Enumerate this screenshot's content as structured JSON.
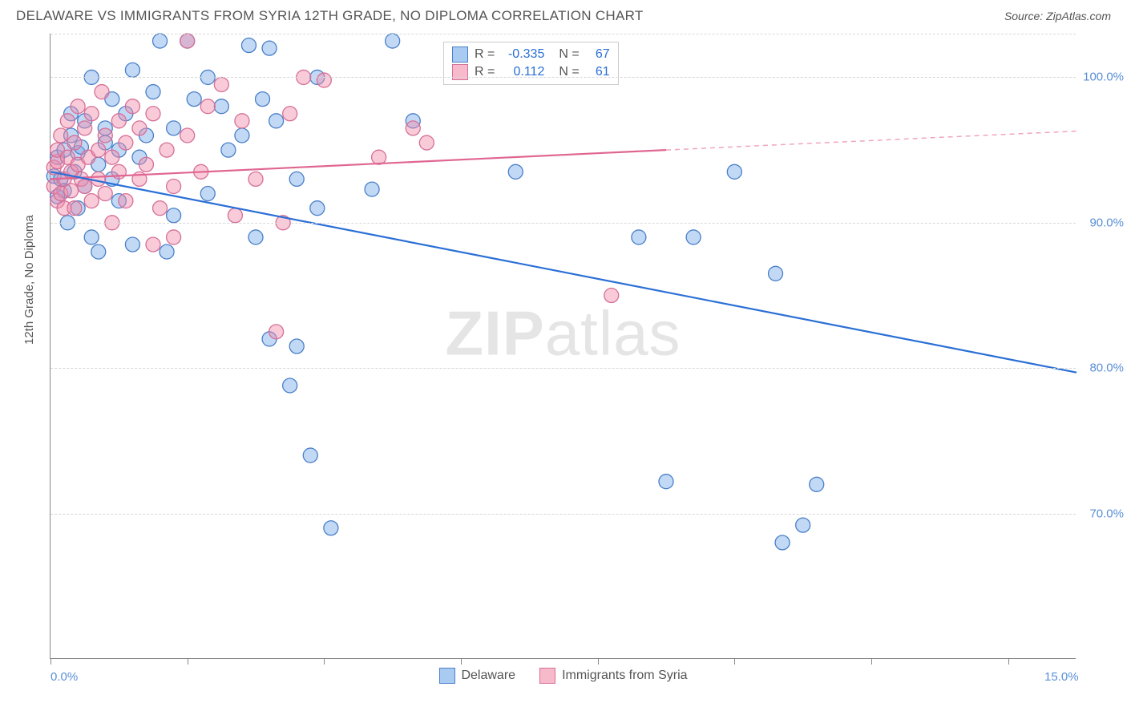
{
  "header": {
    "title": "DELAWARE VS IMMIGRANTS FROM SYRIA 12TH GRADE, NO DIPLOMA CORRELATION CHART",
    "source": "Source: ZipAtlas.com"
  },
  "chart": {
    "type": "scatter",
    "y_axis_title": "12th Grade, No Diploma",
    "watermark": "ZIPatlas",
    "background_color": "#ffffff",
    "grid_color": "#d8d8d8",
    "axis_color": "#888888",
    "xlim": [
      0,
      15
    ],
    "ylim": [
      60,
      103
    ],
    "x_ticks": [
      0,
      2,
      4,
      6,
      8,
      10,
      12,
      14
    ],
    "x_labels": [
      {
        "val": 0,
        "text": "0.0%"
      },
      {
        "val": 15,
        "text": "15.0%"
      }
    ],
    "y_gridlines": [
      70,
      80,
      90,
      100,
      103
    ],
    "y_labels": [
      {
        "val": 70,
        "text": "70.0%"
      },
      {
        "val": 80,
        "text": "80.0%"
      },
      {
        "val": 90,
        "text": "90.0%"
      },
      {
        "val": 100,
        "text": "100.0%"
      }
    ],
    "marker_radius": 9,
    "marker_stroke_width": 1.3,
    "series": [
      {
        "name": "Delaware",
        "fill": "rgba(120,170,235,0.45)",
        "stroke": "#4a7fc8",
        "points": [
          [
            0.05,
            93.2
          ],
          [
            0.1,
            91.8
          ],
          [
            0.1,
            94.5
          ],
          [
            0.15,
            93.0
          ],
          [
            0.2,
            95.0
          ],
          [
            0.2,
            92.2
          ],
          [
            0.25,
            90.0
          ],
          [
            0.3,
            96.0
          ],
          [
            0.3,
            97.5
          ],
          [
            0.35,
            93.5
          ],
          [
            0.4,
            94.8
          ],
          [
            0.4,
            91.0
          ],
          [
            0.45,
            95.2
          ],
          [
            0.5,
            92.5
          ],
          [
            0.5,
            97.0
          ],
          [
            0.6,
            100.0
          ],
          [
            0.6,
            89.0
          ],
          [
            0.7,
            94.0
          ],
          [
            0.7,
            88.0
          ],
          [
            0.8,
            96.5
          ],
          [
            0.8,
            95.5
          ],
          [
            0.9,
            98.5
          ],
          [
            0.9,
            93.0
          ],
          [
            1.0,
            91.5
          ],
          [
            1.0,
            95.0
          ],
          [
            1.1,
            97.5
          ],
          [
            1.2,
            100.5
          ],
          [
            1.2,
            88.5
          ],
          [
            1.3,
            94.5
          ],
          [
            1.4,
            96.0
          ],
          [
            1.5,
            99.0
          ],
          [
            1.6,
            102.5
          ],
          [
            1.7,
            88.0
          ],
          [
            1.8,
            96.5
          ],
          [
            1.8,
            90.5
          ],
          [
            2.0,
            102.5
          ],
          [
            2.1,
            98.5
          ],
          [
            2.3,
            100.0
          ],
          [
            2.3,
            92.0
          ],
          [
            2.5,
            98.0
          ],
          [
            2.6,
            95.0
          ],
          [
            2.8,
            96.0
          ],
          [
            2.9,
            102.2
          ],
          [
            3.0,
            89.0
          ],
          [
            3.1,
            98.5
          ],
          [
            3.2,
            102.0
          ],
          [
            3.2,
            82.0
          ],
          [
            3.3,
            97.0
          ],
          [
            3.5,
            78.8
          ],
          [
            3.6,
            93.0
          ],
          [
            3.6,
            81.5
          ],
          [
            3.8,
            74.0
          ],
          [
            3.9,
            100.0
          ],
          [
            3.9,
            91.0
          ],
          [
            4.1,
            69.0
          ],
          [
            4.7,
            92.3
          ],
          [
            5.0,
            102.5
          ],
          [
            5.3,
            97.0
          ],
          [
            6.8,
            93.5
          ],
          [
            8.6,
            89.0
          ],
          [
            9.0,
            72.2
          ],
          [
            9.4,
            89.0
          ],
          [
            10.0,
            93.5
          ],
          [
            10.6,
            86.5
          ],
          [
            10.7,
            68.0
          ],
          [
            11.0,
            69.2
          ],
          [
            11.2,
            72.0
          ]
        ],
        "trend": {
          "x1": 0,
          "y1": 93.5,
          "x2": 15,
          "y2": 79.7,
          "color": "#2a6fd6",
          "width": 2.2
        }
      },
      {
        "name": "Immigrants from Syria",
        "fill": "rgba(242,140,170,0.45)",
        "stroke": "#d66f96",
        "points": [
          [
            0.05,
            92.5
          ],
          [
            0.05,
            93.8
          ],
          [
            0.1,
            91.5
          ],
          [
            0.1,
            94.2
          ],
          [
            0.1,
            95.0
          ],
          [
            0.15,
            92.0
          ],
          [
            0.15,
            96.0
          ],
          [
            0.2,
            93.0
          ],
          [
            0.2,
            91.0
          ],
          [
            0.25,
            94.5
          ],
          [
            0.25,
            97.0
          ],
          [
            0.3,
            93.5
          ],
          [
            0.3,
            92.2
          ],
          [
            0.35,
            95.5
          ],
          [
            0.35,
            91.0
          ],
          [
            0.4,
            94.0
          ],
          [
            0.4,
            98.0
          ],
          [
            0.45,
            93.0
          ],
          [
            0.5,
            96.5
          ],
          [
            0.5,
            92.5
          ],
          [
            0.55,
            94.5
          ],
          [
            0.6,
            91.5
          ],
          [
            0.6,
            97.5
          ],
          [
            0.7,
            93.0
          ],
          [
            0.7,
            95.0
          ],
          [
            0.75,
            99.0
          ],
          [
            0.8,
            92.0
          ],
          [
            0.8,
            96.0
          ],
          [
            0.9,
            94.5
          ],
          [
            0.9,
            90.0
          ],
          [
            1.0,
            97.0
          ],
          [
            1.0,
            93.5
          ],
          [
            1.1,
            95.5
          ],
          [
            1.1,
            91.5
          ],
          [
            1.2,
            98.0
          ],
          [
            1.3,
            93.0
          ],
          [
            1.3,
            96.5
          ],
          [
            1.4,
            94.0
          ],
          [
            1.5,
            88.5
          ],
          [
            1.5,
            97.5
          ],
          [
            1.6,
            91.0
          ],
          [
            1.7,
            95.0
          ],
          [
            1.8,
            92.5
          ],
          [
            1.8,
            89.0
          ],
          [
            2.0,
            102.5
          ],
          [
            2.0,
            96.0
          ],
          [
            2.2,
            93.5
          ],
          [
            2.3,
            98.0
          ],
          [
            2.5,
            99.5
          ],
          [
            2.7,
            90.5
          ],
          [
            2.8,
            97.0
          ],
          [
            3.0,
            93.0
          ],
          [
            3.3,
            82.5
          ],
          [
            3.4,
            90.0
          ],
          [
            3.5,
            97.5
          ],
          [
            3.7,
            100.0
          ],
          [
            4.0,
            99.8
          ],
          [
            4.8,
            94.5
          ],
          [
            5.3,
            96.5
          ],
          [
            5.5,
            95.5
          ],
          [
            8.2,
            85.0
          ]
        ],
        "trend_solid": {
          "x1": 0,
          "y1": 93.0,
          "x2": 9.0,
          "y2": 95.0,
          "color": "#e06692",
          "width": 2.2
        },
        "trend_dash": {
          "x1": 9.0,
          "y1": 95.0,
          "x2": 15,
          "y2": 96.3,
          "color": "#f0a5bd",
          "width": 1.5
        }
      }
    ],
    "stats_legend": {
      "rows": [
        {
          "swatch": "blue",
          "r_label": "R =",
          "r_val": "-0.335",
          "n_label": "N =",
          "n_val": "67"
        },
        {
          "swatch": "pink",
          "r_label": "R =",
          "r_val": "0.112",
          "n_label": "N =",
          "n_val": "61"
        }
      ]
    },
    "bottom_legend": {
      "items": [
        {
          "swatch": "blue",
          "label": "Delaware"
        },
        {
          "swatch": "pink",
          "label": "Immigrants from Syria"
        }
      ]
    }
  }
}
